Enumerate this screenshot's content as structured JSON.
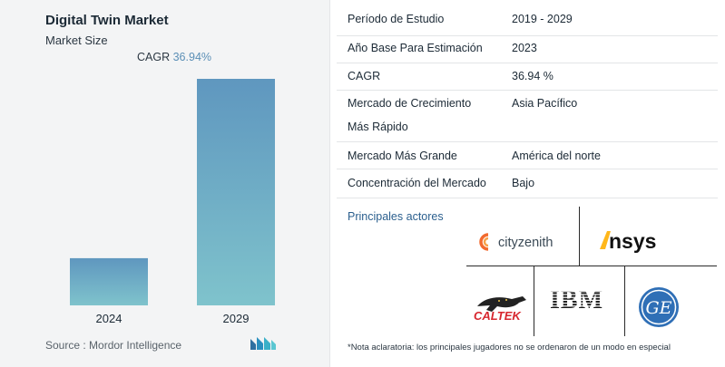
{
  "chart": {
    "title": "Digital Twin Market",
    "subtitle": "Market Size",
    "cagr_label": "CAGR",
    "cagr_value": "36.94%",
    "source": "Source : Mordor Intelligence"
  },
  "chart_data": {
    "type": "bar",
    "categories": [
      "2024",
      "2029"
    ],
    "values": [
      1,
      4.8
    ],
    "title": "Digital Twin Market",
    "subtitle": "Market Size",
    "xlabel": "",
    "ylabel": "",
    "annotations": [
      "CAGR 36.94%"
    ],
    "grid": false,
    "bar_color_top": "#5f97bf",
    "bar_color_bottom": "#7fc3cc"
  },
  "info": {
    "rows": [
      {
        "key": "Período de Estudio",
        "value": "2019 - 2029"
      },
      {
        "key": "Año Base Para Estimación",
        "value": "2023"
      },
      {
        "key": "CAGR",
        "value": "36.94 %"
      },
      {
        "key": "Mercado de Crecimiento",
        "key2": "Más Rápido",
        "value": "Asia Pacífico"
      },
      {
        "key": "Mercado Más Grande",
        "value": "América del norte"
      },
      {
        "key": "Concentración del Mercado",
        "value": "Bajo"
      }
    ],
    "players_title": "Principales actores"
  },
  "players": {
    "logos": [
      {
        "name": "cityzenith-logo",
        "text": "cityzenith"
      },
      {
        "name": "ansys-logo",
        "text": "Ansys"
      },
      {
        "name": "caltek-logo",
        "text": "CALTEK"
      },
      {
        "name": "ibm-logo",
        "text": "IBM"
      },
      {
        "name": "ge-logo",
        "text": "GE"
      }
    ],
    "footnote": "*Nota aclaratoria: los principales jugadores no se ordenaron de un modo en especial"
  },
  "colors": {
    "accent": "#5b8fb6",
    "players_title": "#2b5f8e",
    "ansys_yellow": "#ffb71b",
    "cityzenith_orange": "#f26a2e",
    "caltek_red": "#d7262e",
    "ge_blue": "#2f6fb6"
  }
}
